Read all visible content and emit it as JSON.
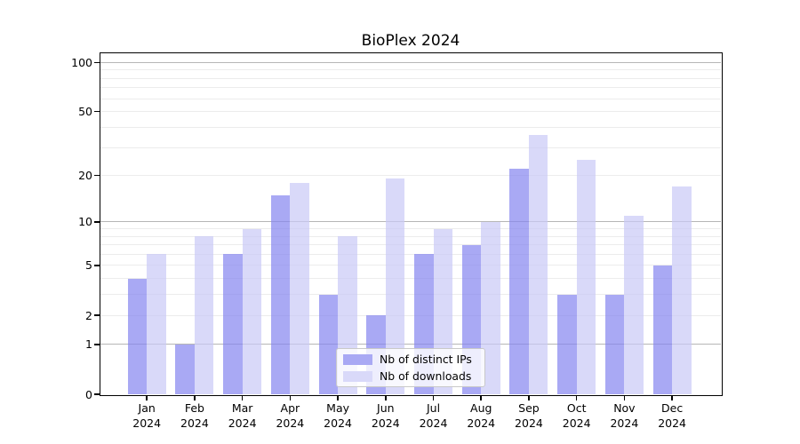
{
  "chart_data": {
    "type": "bar",
    "title": "BioPlex 2024",
    "categories": [
      "Jan",
      "Feb",
      "Mar",
      "Apr",
      "May",
      "Jun",
      "Jul",
      "Aug",
      "Sep",
      "Oct",
      "Nov",
      "Dec"
    ],
    "category_year": "2024",
    "series": [
      {
        "name": "Nb of distinct IPs",
        "color": "#a9a9f4",
        "values": [
          4,
          1,
          6,
          15,
          3,
          2,
          6,
          7,
          22,
          3,
          3,
          5
        ]
      },
      {
        "name": "Nb of downloads",
        "color": "#d9d9f9",
        "values": [
          6,
          8,
          9,
          18,
          8,
          19,
          9,
          10,
          36,
          25,
          11,
          17
        ]
      }
    ],
    "yscale": "log1p",
    "ylim": [
      0,
      114
    ],
    "yticks": [
      0,
      1,
      2,
      5,
      10,
      20,
      50,
      100
    ],
    "yticks_major_grid": [
      1,
      10,
      100
    ],
    "yticks_minor_grid": [
      2,
      3,
      4,
      5,
      6,
      7,
      8,
      9,
      20,
      30,
      40,
      50,
      60,
      70,
      80,
      90
    ],
    "grid": true,
    "legend": {
      "position": "lower center",
      "entries": [
        "Nb of distinct IPs",
        "Nb of downloads"
      ]
    }
  }
}
